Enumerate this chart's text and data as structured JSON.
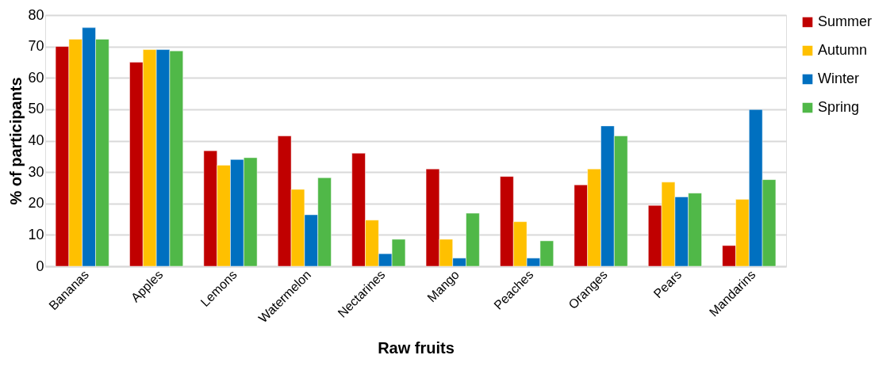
{
  "chart_data": {
    "type": "bar",
    "xlabel": "Raw fruits",
    "ylabel": "% of participants",
    "categories": [
      "Bananas",
      "Apples",
      "Lemons",
      "Watermelon",
      "Nectarines",
      "Mango",
      "Peaches",
      "Oranges",
      "Pears",
      "Mandarins"
    ],
    "series": [
      {
        "name": "Summer",
        "color": "#c00000",
        "values": [
          70,
          65,
          36.8,
          41.5,
          36,
          31,
          28.6,
          25.9,
          19.4,
          6.6
        ]
      },
      {
        "name": "Autumn",
        "color": "#ffc000",
        "values": [
          72.3,
          69,
          32.2,
          24.5,
          14.7,
          8.6,
          14.2,
          31,
          26.8,
          21.3
        ]
      },
      {
        "name": "Winter",
        "color": "#0070c0",
        "values": [
          76,
          69,
          34,
          16.4,
          4,
          2.6,
          2.6,
          44.7,
          22.1,
          49.9
        ]
      },
      {
        "name": "Spring",
        "color": "#50b848",
        "values": [
          72.3,
          68.6,
          34.6,
          28.2,
          8.6,
          16.9,
          8.1,
          41.5,
          23.3,
          27.6
        ]
      }
    ],
    "ylim": [
      0,
      80
    ],
    "yticks": [
      0,
      10,
      20,
      30,
      40,
      50,
      60,
      70,
      80
    ],
    "grid": "y",
    "legend": "right"
  }
}
